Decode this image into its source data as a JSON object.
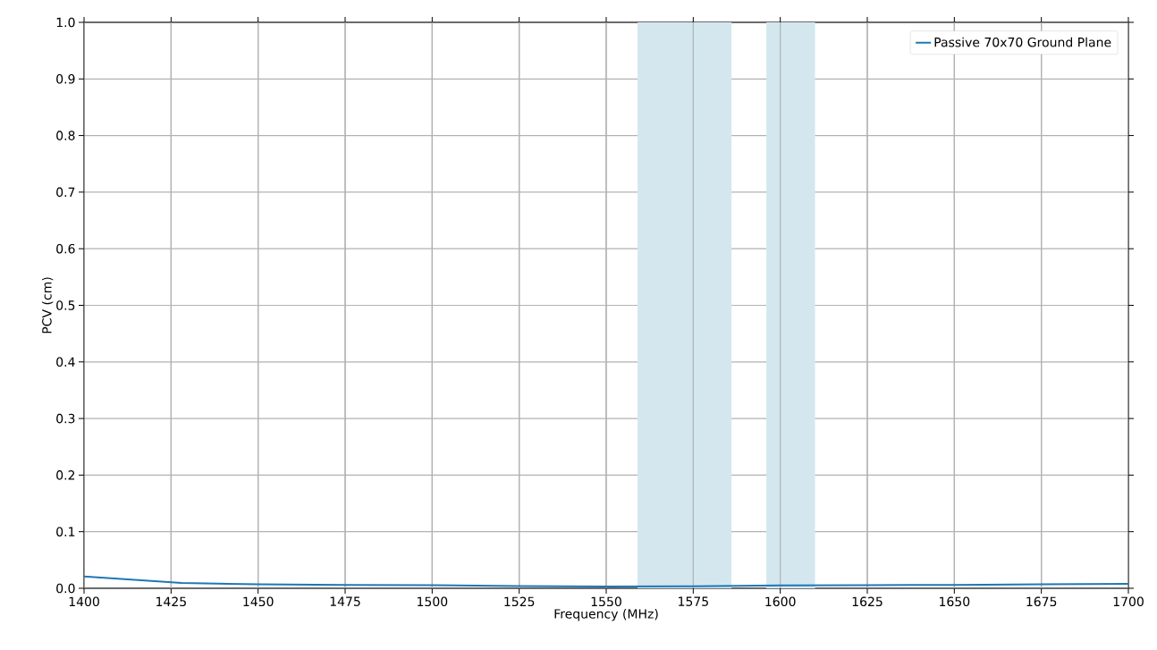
{
  "chart_data": {
    "type": "line",
    "xlabel": "Frequency (MHz)",
    "ylabel": "PCV (cm)",
    "x": [
      1400,
      1428,
      1450,
      1475,
      1500,
      1525,
      1550,
      1575,
      1600,
      1625,
      1650,
      1675,
      1700
    ],
    "series": [
      {
        "name": "Passive 70x70 Ground Plane",
        "color": "#1f77b4",
        "values": [
          0.021,
          0.0095,
          0.007,
          0.006,
          0.0055,
          0.004,
          0.003,
          0.0035,
          0.005,
          0.0055,
          0.006,
          0.007,
          0.008
        ]
      }
    ],
    "xlim": [
      1400,
      1700
    ],
    "ylim": [
      0,
      1.0
    ],
    "xticks": [
      1400,
      1425,
      1450,
      1475,
      1500,
      1525,
      1550,
      1575,
      1600,
      1625,
      1650,
      1675,
      1700
    ],
    "yticks": [
      {
        "value": 0,
        "label": "0.0"
      },
      {
        "value": 0.1,
        "label": "0.1"
      },
      {
        "value": 0.2,
        "label": "0.2"
      },
      {
        "value": 0.3,
        "label": "0.3"
      },
      {
        "value": 0.4,
        "label": "0.4"
      },
      {
        "value": 0.5,
        "label": "0.5"
      },
      {
        "value": 0.6,
        "label": "0.6"
      },
      {
        "value": 0.7,
        "label": "0.7"
      },
      {
        "value": 0.8,
        "label": "0.8"
      },
      {
        "value": 0.9,
        "label": "0.9"
      },
      {
        "value": 1.0,
        "label": "1.0"
      }
    ],
    "bands": [
      {
        "axis": "x",
        "from": 1559,
        "to": 1586,
        "color": "#d4e7ef"
      },
      {
        "axis": "x",
        "from": 1596,
        "to": 1610,
        "color": "#d4e7ef"
      }
    ],
    "grid": true,
    "legend": "top right",
    "marker": "none",
    "line_style": "solid"
  }
}
